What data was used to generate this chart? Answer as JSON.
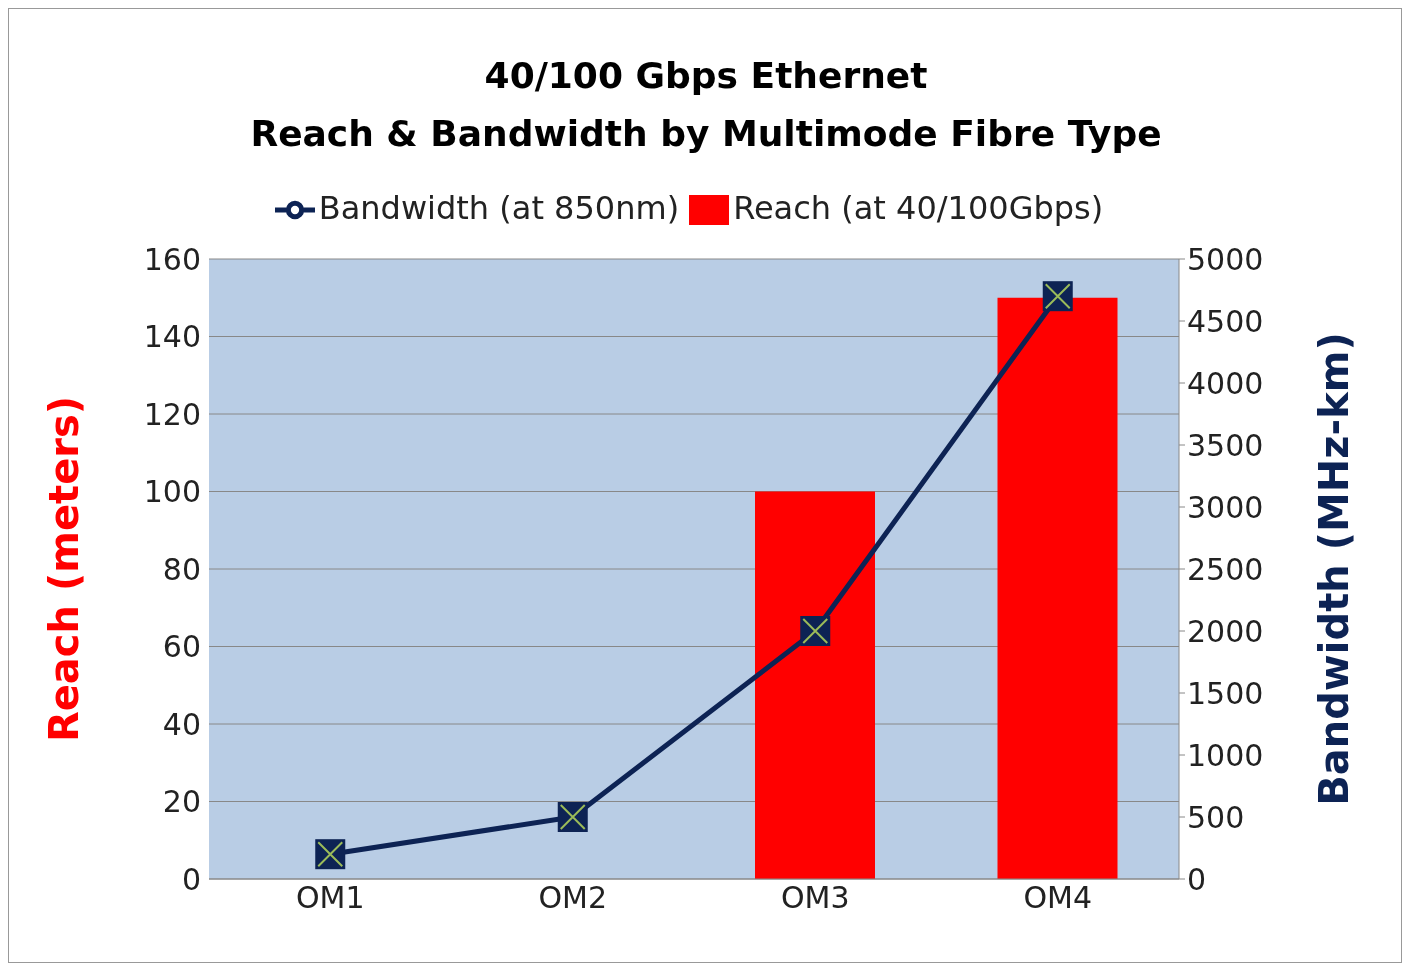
{
  "chart_data": {
    "type": "bar",
    "title": "40/100 Gbps Ethernet\nReach & Bandwidth by Multimode Fibre Type",
    "categories": [
      "OM1",
      "OM2",
      "OM3",
      "OM4"
    ],
    "series": [
      {
        "name": "Reach (at 40/100Gbps)",
        "color": "#ff0000",
        "values": [
          null,
          null,
          100,
          150
        ]
      },
      {
        "name": "Bandwidth (at 850nm)",
        "type": "line",
        "axis": "y2",
        "color": "#0d2354",
        "values": [
          200,
          500,
          2000,
          4700
        ],
        "marker": "square"
      }
    ],
    "ylabel": "Reach (meters)",
    "y2label": "Bandwidth (MHz-km)",
    "ylim": [
      0,
      160
    ],
    "yticks": [
      0,
      20,
      40,
      60,
      80,
      100,
      120,
      140,
      160
    ],
    "y2lim": [
      0,
      5000
    ],
    "y2ticks": [
      0,
      500,
      1000,
      1500,
      2000,
      2500,
      3000,
      3500,
      4000,
      4500,
      5000
    ],
    "grid": "y",
    "legend": "top"
  }
}
